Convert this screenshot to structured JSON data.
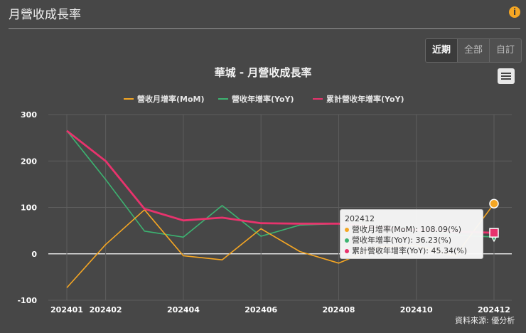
{
  "header": {
    "title": "月營收成長率",
    "info_icon": "info-icon"
  },
  "range_buttons": [
    {
      "label": "近期",
      "active": true
    },
    {
      "label": "全部",
      "active": false
    },
    {
      "label": "自訂",
      "active": false
    }
  ],
  "source": "資料來源: 優分析",
  "tooltip": {
    "title": "202412",
    "rows": [
      {
        "label": "營收月增率(MoM): 108.09(%)",
        "color": "#f5a623"
      },
      {
        "label": "營收年增率(YoY): 36.23(%)",
        "color": "#3cb371"
      },
      {
        "label": "累計營收年增率(YoY): 45.34(%)",
        "color": "#e8336d"
      }
    ]
  },
  "chart_data": {
    "type": "line",
    "title": "華城 - 月營收成長率",
    "xlabel": "",
    "ylabel": "",
    "x": [
      "202401",
      "202402",
      "202403",
      "202404",
      "202405",
      "202406",
      "202407",
      "202408",
      "202409",
      "202410",
      "202411",
      "202412"
    ],
    "tick_labels": [
      "202401",
      "202402",
      "202404",
      "202406",
      "202408",
      "202410",
      "202412"
    ],
    "y_ticks": [
      "300",
      "200",
      "100",
      "0",
      "-100"
    ],
    "ylim": [
      -100,
      300
    ],
    "grid": true,
    "legend": "top",
    "series": [
      {
        "name": "營收月增率(MoM)",
        "color": "#f5a623",
        "values": [
          -73,
          20,
          95,
          -4,
          -13,
          54,
          5,
          -20,
          15,
          18,
          -5,
          108.09
        ]
      },
      {
        "name": "營收年增率(YoY)",
        "color": "#3cb371",
        "values": [
          265,
          160,
          49,
          36,
          104,
          38,
          62,
          65,
          60,
          55,
          40,
          36.23
        ]
      },
      {
        "name": "累計營收年增率(YoY)",
        "color": "#e8336d",
        "values": [
          265,
          200,
          97,
          72,
          78,
          66,
          65,
          65,
          58,
          52,
          48,
          45.34
        ]
      }
    ]
  }
}
